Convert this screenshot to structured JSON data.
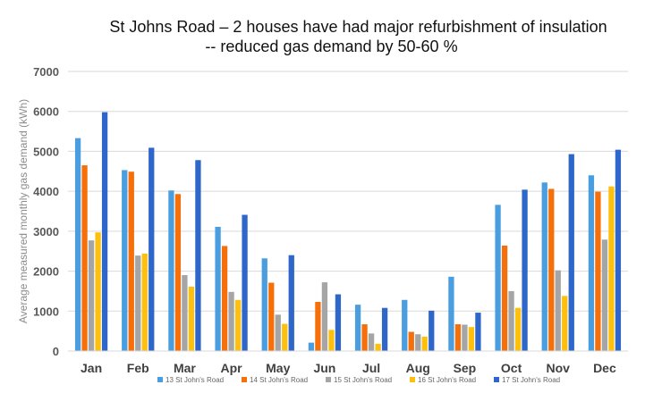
{
  "chart_data": {
    "type": "bar",
    "title": "St Johns Road – 2 houses have had major refurbishment of insulation",
    "subtitle": "-- reduced gas demand by 50-60 %",
    "ylabel": "Average measured monthly gas demand (kWh)",
    "xlabel": "",
    "ylim": [
      0,
      7000
    ],
    "yticks": [
      0,
      1000,
      2000,
      3000,
      4000,
      5000,
      6000,
      7000
    ],
    "grid": true,
    "legend_position": "bottom",
    "categories": [
      "Jan",
      "Feb",
      "Mar",
      "Apr",
      "May",
      "Jun",
      "Jul",
      "Aug",
      "Sep",
      "Oct",
      "Nov",
      "Dec"
    ],
    "series": [
      {
        "name": "13 St John's Road",
        "color": "#4a9ee0",
        "values": [
          5330,
          4530,
          4020,
          3110,
          2320,
          210,
          1160,
          1280,
          1860,
          3660,
          4220,
          4400
        ]
      },
      {
        "name": "14 St John's Road",
        "color": "#f56f0b",
        "values": [
          4650,
          4490,
          3930,
          2630,
          1710,
          1230,
          670,
          480,
          670,
          2640,
          4060,
          3990
        ]
      },
      {
        "name": "15 St John's Road",
        "color": "#a5a5a5",
        "values": [
          2770,
          2390,
          1900,
          1480,
          910,
          1720,
          440,
          420,
          660,
          1500,
          2020,
          2790
        ]
      },
      {
        "name": "16 St John's Road",
        "color": "#fdc00f",
        "values": [
          2970,
          2440,
          1610,
          1280,
          680,
          530,
          180,
          360,
          600,
          1080,
          1380,
          4120
        ]
      },
      {
        "name": "17 St John's Road",
        "color": "#2e67c9",
        "values": [
          5980,
          5090,
          4780,
          3410,
          2400,
          1420,
          1080,
          1010,
          960,
          4040,
          4930,
          5040
        ]
      }
    ]
  }
}
